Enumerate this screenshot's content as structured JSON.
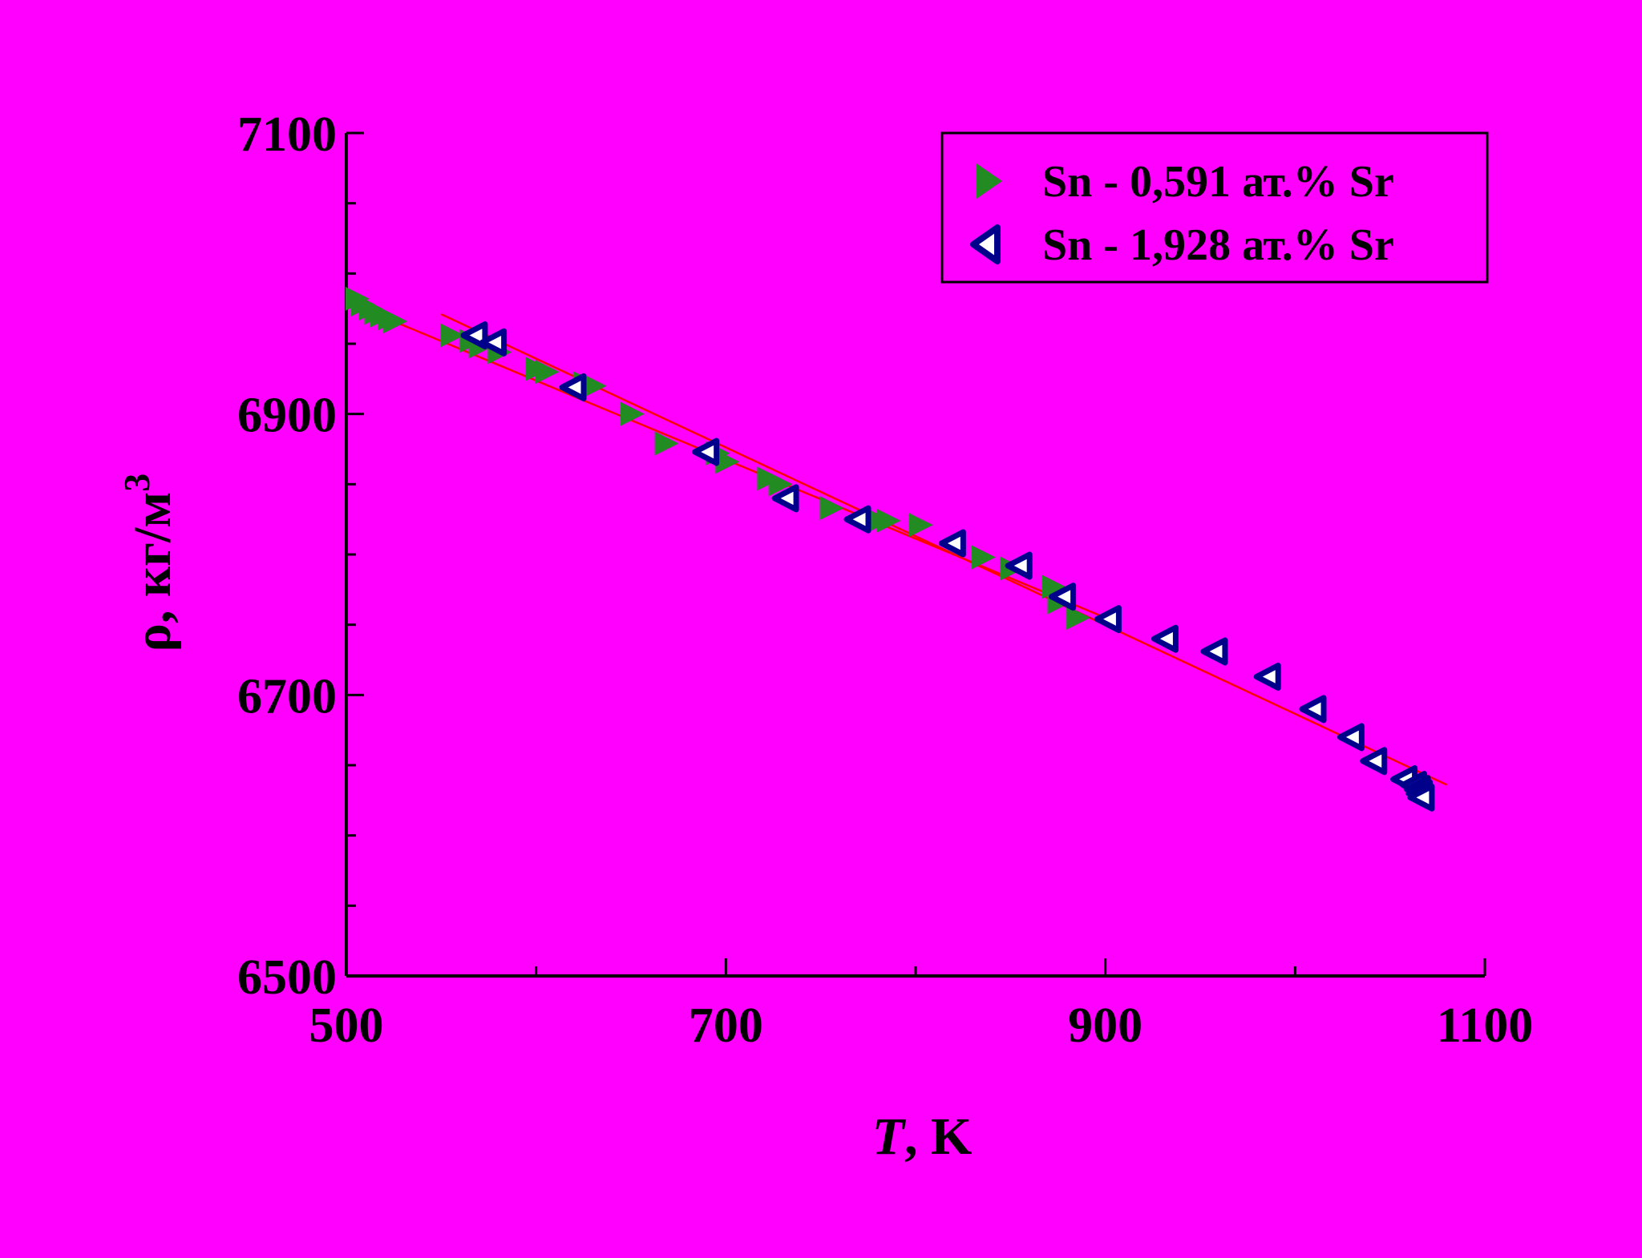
{
  "page": {
    "background": "#ff00ff"
  },
  "chart_data": {
    "type": "scatter",
    "title": "",
    "xlabel": {
      "italic": "T",
      "rest": ", K"
    },
    "ylabel": {
      "text": "ρ, кг/м",
      "sup": "3"
    },
    "xlim": [
      500,
      1100
    ],
    "ylim": [
      6500,
      7100
    ],
    "x_ticks": [
      "500",
      "700",
      "900",
      "1100"
    ],
    "y_ticks": [
      "7100",
      "6900",
      "6700",
      "6500"
    ],
    "grid": false,
    "legend_position": "top-right",
    "series": [
      {
        "name": "Sn - 0,591 ат.% Sr",
        "marker": "triangle-right-filled",
        "color": "#228b22",
        "points": [
          [
            505,
            6982
          ],
          [
            508,
            6978
          ],
          [
            512,
            6975
          ],
          [
            515,
            6972
          ],
          [
            518,
            6970
          ],
          [
            522,
            6968
          ],
          [
            525,
            6966
          ],
          [
            555,
            6956
          ],
          [
            565,
            6952
          ],
          [
            570,
            6948
          ],
          [
            580,
            6944
          ],
          [
            600,
            6932
          ],
          [
            605,
            6930
          ],
          [
            625,
            6922
          ],
          [
            630,
            6920
          ],
          [
            650,
            6900
          ],
          [
            668,
            6879
          ],
          [
            695,
            6872
          ],
          [
            700,
            6866
          ],
          [
            722,
            6854
          ],
          [
            728,
            6850
          ],
          [
            755,
            6833
          ],
          [
            780,
            6824
          ],
          [
            785,
            6824
          ],
          [
            802,
            6821
          ],
          [
            835,
            6798
          ],
          [
            850,
            6790
          ],
          [
            872,
            6777
          ],
          [
            875,
            6766
          ],
          [
            885,
            6755
          ]
        ]
      },
      {
        "name": "Sn - 1,928 ат.% Sr",
        "marker": "triangle-left-open",
        "color": "#00008b",
        "points": [
          [
            568,
            6956
          ],
          [
            578,
            6951
          ],
          [
            620,
            6919
          ],
          [
            690,
            6873
          ],
          [
            732,
            6840
          ],
          [
            770,
            6825
          ],
          [
            820,
            6808
          ],
          [
            855,
            6792
          ],
          [
            878,
            6770
          ],
          [
            902,
            6754
          ],
          [
            932,
            6740
          ],
          [
            958,
            6731
          ],
          [
            986,
            6713
          ],
          [
            1010,
            6690
          ],
          [
            1030,
            6670
          ],
          [
            1042,
            6653
          ],
          [
            1058,
            6640
          ],
          [
            1063,
            6636
          ],
          [
            1065,
            6633
          ],
          [
            1066,
            6630
          ],
          [
            1067,
            6627
          ]
        ]
      }
    ],
    "fit_lines": [
      {
        "color": "#ff0000",
        "x": [
          500,
          900
        ],
        "y": [
          6980,
          6755
        ]
      },
      {
        "color": "#ff0000",
        "x": [
          550,
          1080
        ],
        "y": [
          6971,
          6636
        ]
      }
    ]
  }
}
